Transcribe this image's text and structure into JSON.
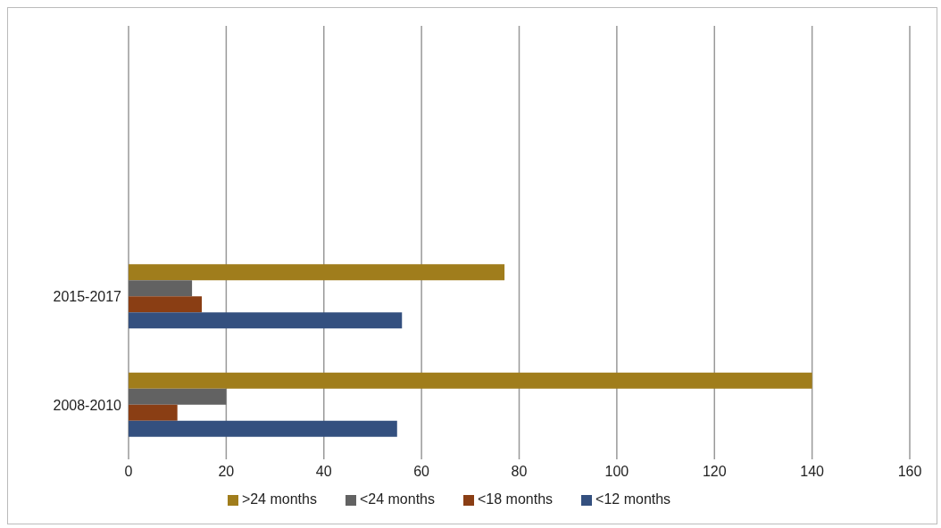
{
  "chart_data": {
    "type": "bar",
    "orientation": "horizontal",
    "categories": [
      null,
      null,
      "2015-2017",
      "2008-2010"
    ],
    "series": [
      {
        "name": ">24 months",
        "color": "#a07d1c",
        "values": [
          null,
          null,
          77,
          140
        ]
      },
      {
        "name": "<24 months",
        "color": "#626262",
        "values": [
          null,
          null,
          13,
          20
        ]
      },
      {
        "name": "<18 months",
        "color": "#8a3e14",
        "values": [
          null,
          null,
          15,
          10
        ]
      },
      {
        "name": "<12 months",
        "color": "#34507f",
        "values": [
          null,
          null,
          56,
          55
        ]
      }
    ],
    "xlim": [
      0,
      160
    ],
    "xticks": [
      0,
      20,
      40,
      60,
      80,
      100,
      120,
      140,
      160
    ],
    "grid": "x",
    "legend": "bottom"
  }
}
